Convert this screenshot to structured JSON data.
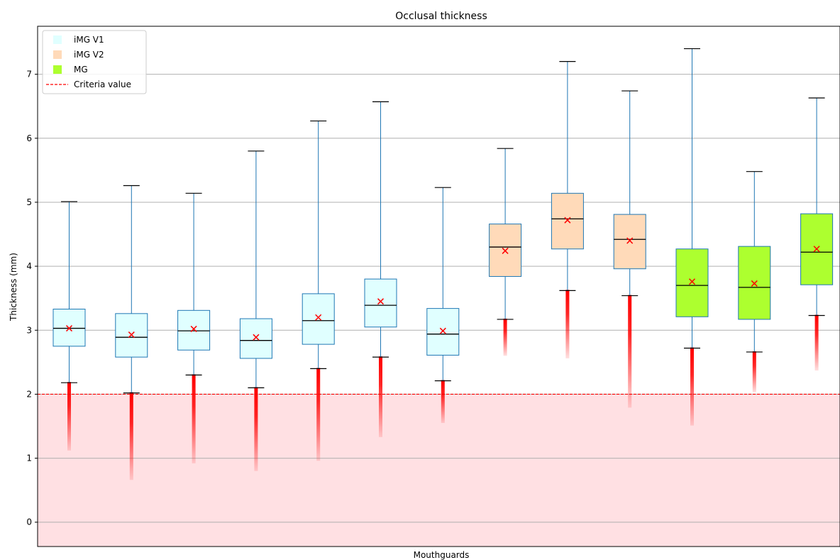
{
  "chart_data": {
    "type": "box",
    "title": "Occlusal thickness",
    "xlabel": "Mouthguards",
    "ylabel": "Thickness (mm)",
    "ylim": [
      -0.38,
      7.75
    ],
    "yticks": [
      0,
      1,
      2,
      3,
      4,
      5,
      6,
      7
    ],
    "grid": "horizontal",
    "legend_position": "top-left",
    "criteria_value": 2.0,
    "legend": [
      {
        "label": "iMG V1",
        "color": "#e0ffff",
        "kind": "patch"
      },
      {
        "label": "iMG V2",
        "color": "#ffdab9",
        "kind": "patch"
      },
      {
        "label": "MG",
        "color": "#adff2f",
        "kind": "patch"
      },
      {
        "label": "Criteria value",
        "color": "#ff0000",
        "kind": "dashed-line"
      }
    ],
    "series": [
      {
        "group": "iMG V1",
        "color": "#e0ffff",
        "whisker_low": 2.18,
        "q1": 2.75,
        "median": 3.03,
        "mean": 3.03,
        "q3": 3.33,
        "whisker_high": 5.01,
        "outlier_min": 1.12
      },
      {
        "group": "iMG V1",
        "color": "#e0ffff",
        "whisker_low": 2.02,
        "q1": 2.58,
        "median": 2.89,
        "mean": 2.93,
        "q3": 3.26,
        "whisker_high": 5.26,
        "outlier_min": 0.66
      },
      {
        "group": "iMG V1",
        "color": "#e0ffff",
        "whisker_low": 2.3,
        "q1": 2.69,
        "median": 2.99,
        "mean": 3.02,
        "q3": 3.31,
        "whisker_high": 5.14,
        "outlier_min": 0.92
      },
      {
        "group": "iMG V1",
        "color": "#e0ffff",
        "whisker_low": 2.1,
        "q1": 2.56,
        "median": 2.84,
        "mean": 2.89,
        "q3": 3.18,
        "whisker_high": 5.8,
        "outlier_min": 0.8
      },
      {
        "group": "iMG V1",
        "color": "#e0ffff",
        "whisker_low": 2.4,
        "q1": 2.78,
        "median": 3.15,
        "mean": 3.2,
        "q3": 3.57,
        "whisker_high": 6.27,
        "outlier_min": 0.96
      },
      {
        "group": "iMG V1",
        "color": "#e0ffff",
        "whisker_low": 2.58,
        "q1": 3.05,
        "median": 3.39,
        "mean": 3.45,
        "q3": 3.8,
        "whisker_high": 6.57,
        "outlier_min": 1.33
      },
      {
        "group": "iMG V1",
        "color": "#e0ffff",
        "whisker_low": 2.21,
        "q1": 2.61,
        "median": 2.94,
        "mean": 2.99,
        "q3": 3.34,
        "whisker_high": 5.23,
        "outlier_min": 1.55
      },
      {
        "group": "iMG V2",
        "color": "#ffdab9",
        "whisker_low": 3.17,
        "q1": 3.84,
        "median": 4.3,
        "mean": 4.24,
        "q3": 4.66,
        "whisker_high": 5.84,
        "outlier_min": 2.6
      },
      {
        "group": "iMG V2",
        "color": "#ffdab9",
        "whisker_low": 3.62,
        "q1": 4.27,
        "median": 4.74,
        "mean": 4.72,
        "q3": 5.14,
        "whisker_high": 7.2,
        "outlier_min": 2.56
      },
      {
        "group": "iMG V2",
        "color": "#ffdab9",
        "whisker_low": 3.54,
        "q1": 3.96,
        "median": 4.42,
        "mean": 4.4,
        "q3": 4.81,
        "whisker_high": 6.74,
        "outlier_min": 1.79
      },
      {
        "group": "MG",
        "color": "#adff2f",
        "whisker_low": 2.72,
        "q1": 3.21,
        "median": 3.7,
        "mean": 3.76,
        "q3": 4.27,
        "whisker_high": 7.4,
        "outlier_min": 1.51
      },
      {
        "group": "MG",
        "color": "#adff2f",
        "whisker_low": 2.66,
        "q1": 3.17,
        "median": 3.67,
        "mean": 3.73,
        "q3": 4.31,
        "whisker_high": 5.48,
        "outlier_min": 2.03
      },
      {
        "group": "MG",
        "color": "#adff2f",
        "whisker_low": 3.23,
        "q1": 3.71,
        "median": 4.22,
        "mean": 4.27,
        "q3": 4.82,
        "whisker_high": 6.63,
        "outlier_min": 2.37
      }
    ]
  }
}
